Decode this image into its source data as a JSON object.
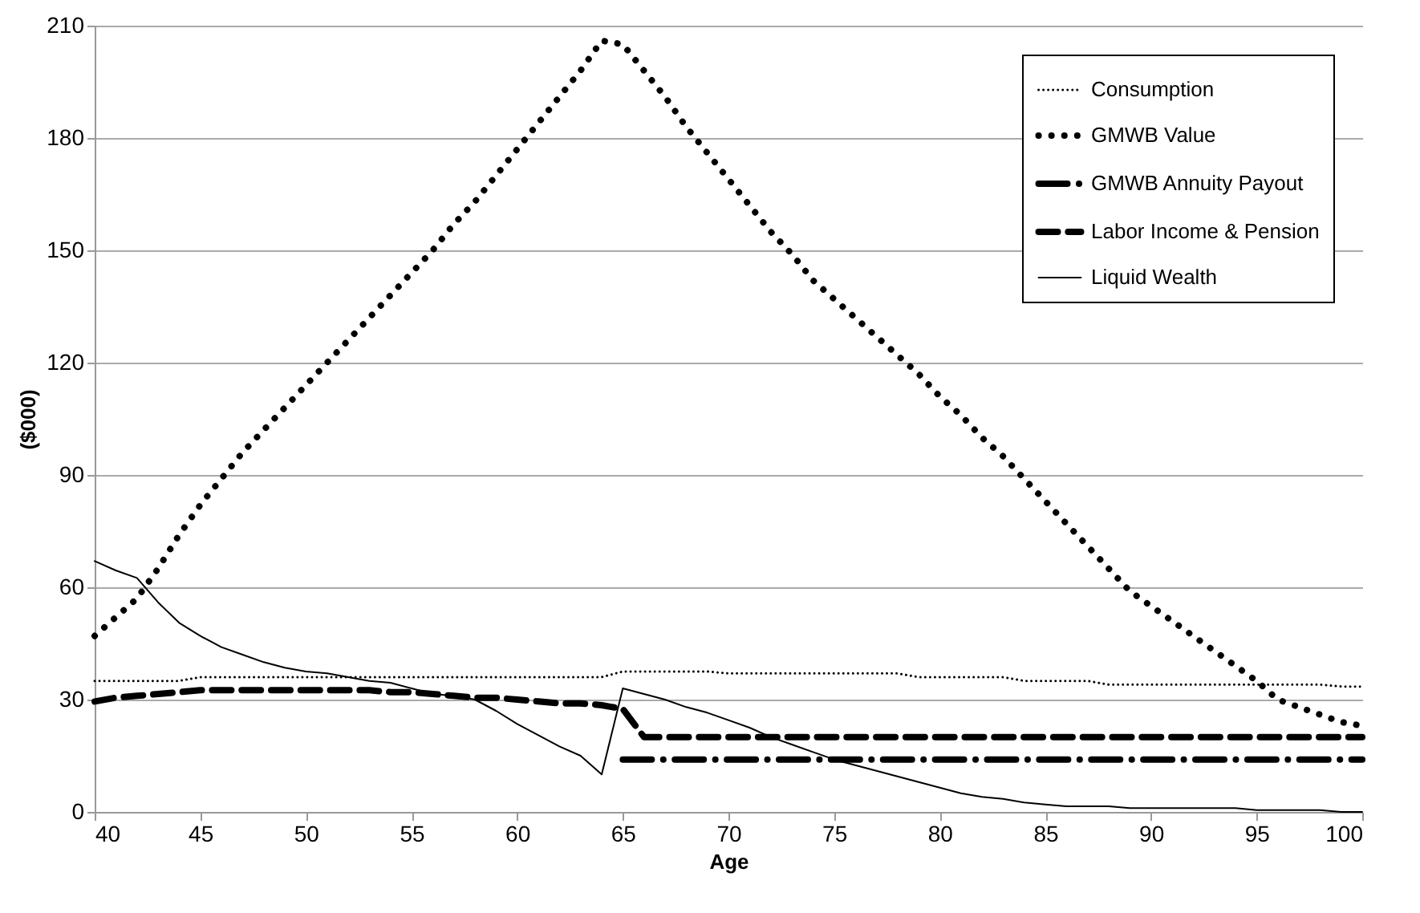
{
  "chart_data": {
    "type": "line",
    "xlabel": "Age",
    "ylabel": "($000)",
    "x": [
      40,
      41,
      42,
      43,
      44,
      45,
      46,
      47,
      48,
      49,
      50,
      51,
      52,
      53,
      54,
      55,
      56,
      57,
      58,
      59,
      60,
      61,
      62,
      63,
      64,
      65,
      66,
      67,
      68,
      69,
      70,
      71,
      72,
      73,
      74,
      75,
      76,
      77,
      78,
      79,
      80,
      81,
      82,
      83,
      84,
      85,
      86,
      87,
      88,
      89,
      90,
      91,
      92,
      93,
      94,
      95,
      96,
      97,
      98,
      99,
      100
    ],
    "series": [
      {
        "name": "Consumption",
        "color": "#000000",
        "line_style": "dotted",
        "values": [
          35,
          35,
          35,
          35,
          35,
          36,
          36,
          36,
          36,
          36,
          36,
          36,
          36,
          36,
          36,
          36,
          36,
          36,
          36,
          36,
          36,
          36,
          36,
          36,
          36,
          37.5,
          37.5,
          37.5,
          37.5,
          37.5,
          37,
          37,
          37,
          37,
          37,
          37,
          37,
          37,
          37,
          36,
          36,
          36,
          36,
          36,
          35,
          35,
          35,
          35,
          34,
          34,
          34,
          34,
          34,
          34,
          34,
          34,
          34,
          34,
          34,
          33.5,
          33.5
        ]
      },
      {
        "name": "GMWB Value",
        "color": "#000000",
        "line_style": "dotted",
        "values": [
          47,
          52,
          57,
          65,
          74,
          82,
          89,
          96,
          102,
          108,
          114,
          120,
          126,
          132,
          138,
          144,
          150,
          157,
          163,
          170,
          177,
          184,
          191,
          198,
          206,
          205,
          198,
          191,
          183,
          176,
          169,
          162,
          155,
          149,
          142,
          137,
          132,
          127,
          122,
          117,
          111,
          106,
          100,
          95,
          89,
          83,
          77,
          71,
          65,
          59,
          55,
          51,
          47,
          43,
          39,
          35,
          30,
          28,
          26,
          24,
          23
        ]
      },
      {
        "name": "GMWB Annuity Payout",
        "color": "#000000",
        "line_style": "dashdot",
        "values": [
          null,
          null,
          null,
          null,
          null,
          null,
          null,
          null,
          null,
          null,
          null,
          null,
          null,
          null,
          null,
          null,
          null,
          null,
          null,
          null,
          null,
          null,
          null,
          null,
          null,
          14,
          14,
          14,
          14,
          14,
          14,
          14,
          14,
          14,
          14,
          14,
          14,
          14,
          14,
          14,
          14,
          14,
          14,
          14,
          14,
          14,
          14,
          14,
          14,
          14,
          14,
          14,
          14,
          14,
          14,
          14,
          14,
          14,
          14,
          14,
          14
        ]
      },
      {
        "name": "Labor Income & Pension",
        "color": "#000000",
        "line_style": "dashed",
        "values": [
          29.5,
          30.5,
          31,
          31.5,
          32,
          32.5,
          32.5,
          32.5,
          32.5,
          32.5,
          32.5,
          32.5,
          32.5,
          32.5,
          32,
          32,
          31.5,
          31,
          30.5,
          30.5,
          30,
          29.5,
          29,
          29,
          28.5,
          27.5,
          20,
          20,
          20,
          20,
          20,
          20,
          20,
          20,
          20,
          20,
          20,
          20,
          20,
          20,
          20,
          20,
          20,
          20,
          20,
          20,
          20,
          20,
          20,
          20,
          20,
          20,
          20,
          20,
          20,
          20,
          20,
          20,
          20,
          20,
          20
        ]
      },
      {
        "name": "Liquid Wealth",
        "color": "#000000",
        "line_style": "solid",
        "values": [
          67,
          64.5,
          62.5,
          56,
          50.5,
          47,
          44,
          42,
          40,
          38.5,
          37.5,
          37,
          36,
          35,
          34.5,
          33,
          31.5,
          31,
          30,
          27,
          23.5,
          20.5,
          17.5,
          15,
          10,
          33,
          31.5,
          30,
          28,
          26.5,
          24.5,
          22.5,
          20,
          18,
          16,
          14,
          12.5,
          11,
          9.5,
          8,
          6.5,
          5,
          4,
          3.5,
          2.5,
          2,
          1.5,
          1.5,
          1.5,
          1,
          1,
          1,
          1,
          1,
          1,
          0.5,
          0.5,
          0.5,
          0.5,
          0,
          0
        ]
      }
    ],
    "xlim": [
      40,
      100
    ],
    "xticks": [
      40,
      45,
      50,
      55,
      60,
      65,
      70,
      75,
      80,
      85,
      90,
      95,
      100
    ],
    "ylim": [
      0,
      210
    ],
    "yticks": [
      0,
      30,
      60,
      90,
      120,
      150,
      180,
      210
    ],
    "grid": "y",
    "legend": "top right",
    "marker": "none"
  }
}
